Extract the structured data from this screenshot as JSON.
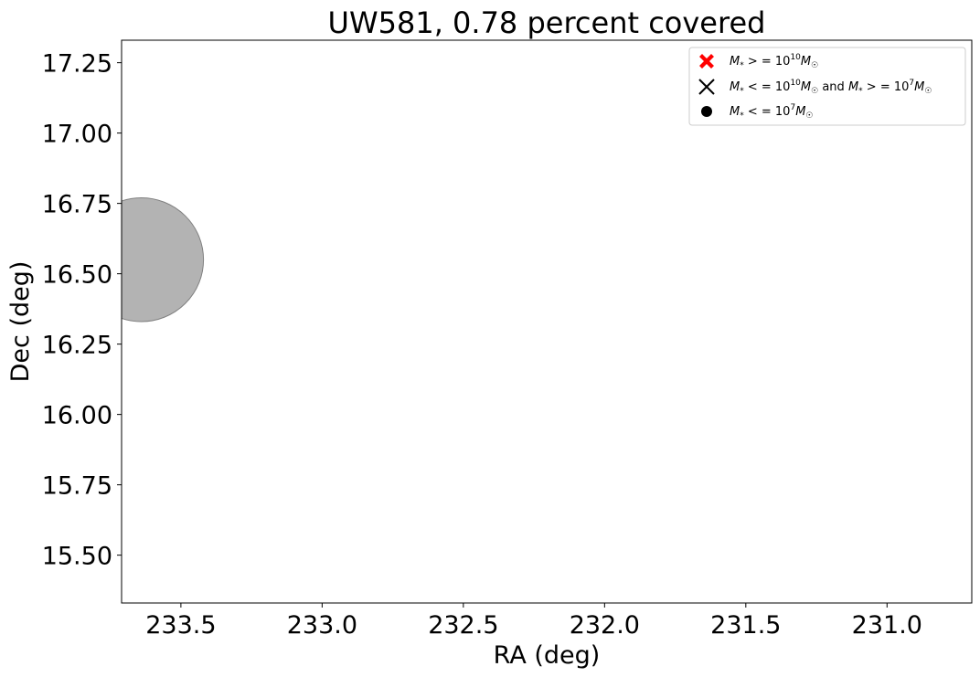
{
  "chart_data": {
    "type": "scatter",
    "title": "UW581, 0.78 percent covered",
    "xlabel": "RA (deg)",
    "ylabel": "Dec (deg)",
    "xlim": [
      233.71,
      230.7
    ],
    "ylim": [
      15.33,
      17.33
    ],
    "x_inverted": true,
    "xticks": [
      "233.5",
      "233.0",
      "232.5",
      "232.0",
      "231.5",
      "231.0"
    ],
    "yticks": [
      "15.50",
      "15.75",
      "16.00",
      "16.25",
      "16.50",
      "16.75",
      "17.00",
      "17.25"
    ],
    "grid": false,
    "legend_position": "upper right",
    "legend": [
      {
        "marker": "filled-x",
        "color": "#ff0000",
        "label": "M* > = 10^10 M☉"
      },
      {
        "marker": "x",
        "color": "#000000",
        "label": "M* < = 10^10 M☉ and M* > = 10^7 M☉"
      },
      {
        "marker": "dot",
        "color": "#000000",
        "label": "M* < = 10^7 M☉"
      }
    ],
    "coverage_region": {
      "center_ra": 233.64,
      "center_dec": 16.55,
      "radius_deg": 0.22,
      "color": "#808080",
      "alpha": 0.6
    },
    "series": [
      {
        "points": []
      },
      {
        "points": []
      },
      {
        "points": []
      }
    ]
  }
}
